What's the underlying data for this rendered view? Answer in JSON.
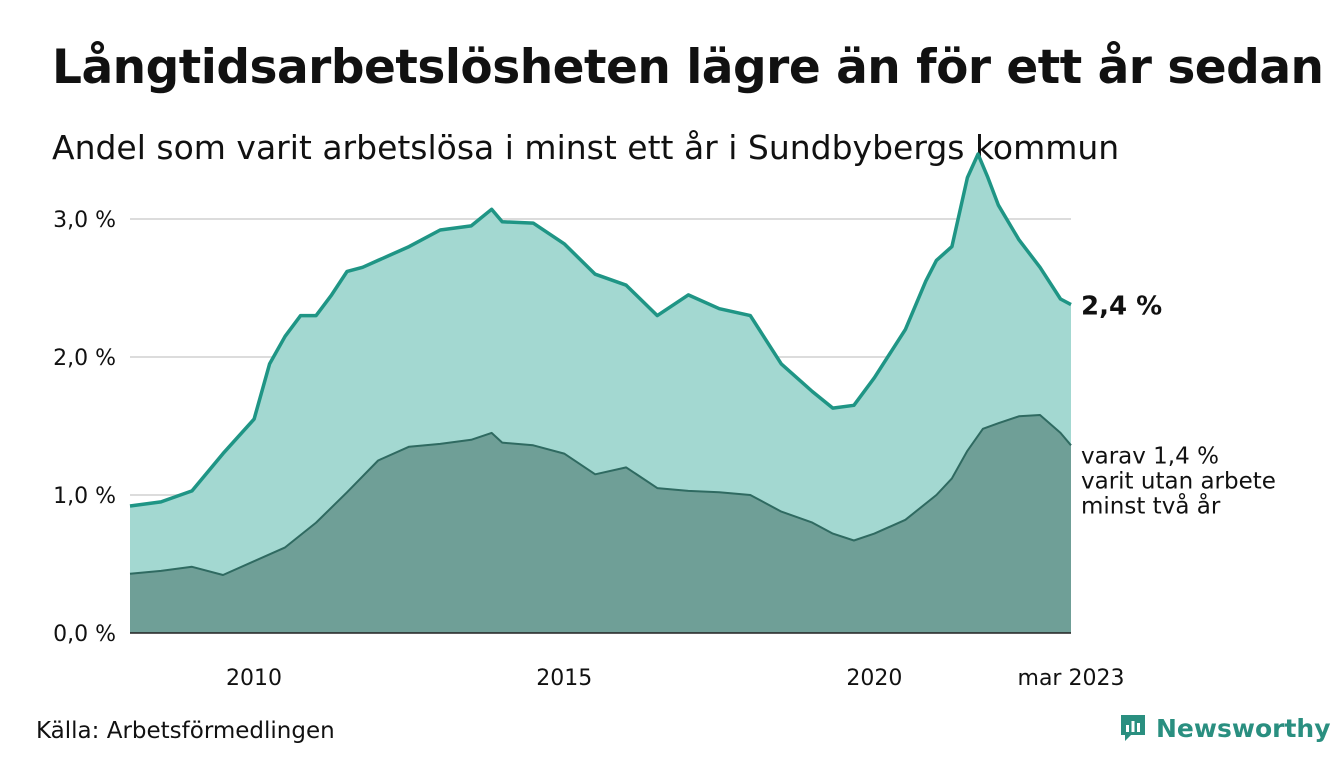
{
  "title": "Långtidsarbetslösheten lägre än för ett år sedan",
  "subtitle": "Andel som varit arbetslösa i minst ett år i Sundbybergs kommun",
  "source": "Källa: Arbetsförmedlingen",
  "brand": "Newsworthy",
  "colors": {
    "upper_fill": "#a3d8d1",
    "upper_line": "#1f9585",
    "lower_fill": "#6f9f97",
    "lower_line": "#2f6a61",
    "brand": "#2a8f80"
  },
  "chart_data": {
    "type": "area",
    "xlim": [
      2008.0,
      2023.17
    ],
    "ylim": [
      0,
      3.5
    ],
    "y_ticks": [
      0,
      1,
      2,
      3
    ],
    "y_tick_labels": [
      "0,0 %",
      "1,0 %",
      "2,0 %",
      "3,0 %"
    ],
    "x_ticks": [
      2010,
      2015,
      2020,
      2023.17
    ],
    "x_tick_labels": [
      "2010",
      "2015",
      "2020",
      "mar 2023"
    ],
    "grid": true,
    "series": [
      {
        "id": "minst_ett_ar",
        "x": [
          2008.0,
          2008.5,
          2009.0,
          2009.5,
          2010.0,
          2010.25,
          2010.5,
          2010.75,
          2011.0,
          2011.25,
          2011.5,
          2011.75,
          2012.0,
          2012.5,
          2013.0,
          2013.5,
          2013.83,
          2014.0,
          2014.5,
          2015.0,
          2015.5,
          2016.0,
          2016.5,
          2017.0,
          2017.5,
          2018.0,
          2018.5,
          2019.0,
          2019.33,
          2019.67,
          2020.0,
          2020.5,
          2020.83,
          2021.0,
          2021.25,
          2021.5,
          2021.67,
          2021.83,
          2022.0,
          2022.33,
          2022.67,
          2023.0,
          2023.17
        ],
        "y": [
          0.92,
          0.95,
          1.03,
          1.3,
          1.55,
          1.95,
          2.15,
          2.3,
          2.3,
          2.45,
          2.62,
          2.65,
          2.7,
          2.8,
          2.92,
          2.95,
          3.07,
          2.98,
          2.97,
          2.82,
          2.6,
          2.52,
          2.3,
          2.45,
          2.35,
          2.3,
          1.95,
          1.75,
          1.63,
          1.65,
          1.85,
          2.2,
          2.55,
          2.7,
          2.8,
          3.3,
          3.47,
          3.3,
          3.1,
          2.85,
          2.65,
          2.42,
          2.38
        ],
        "end_label": "2,4 %"
      },
      {
        "id": "minst_tva_ar",
        "x": [
          2008.0,
          2008.5,
          2009.0,
          2009.5,
          2010.0,
          2010.5,
          2011.0,
          2011.5,
          2012.0,
          2012.5,
          2013.0,
          2013.5,
          2013.83,
          2014.0,
          2014.5,
          2015.0,
          2015.5,
          2016.0,
          2016.5,
          2017.0,
          2017.5,
          2018.0,
          2018.5,
          2019.0,
          2019.33,
          2019.67,
          2020.0,
          2020.5,
          2021.0,
          2021.25,
          2021.5,
          2021.75,
          2022.0,
          2022.33,
          2022.67,
          2023.0,
          2023.17
        ],
        "y": [
          0.43,
          0.45,
          0.48,
          0.42,
          0.52,
          0.62,
          0.8,
          1.02,
          1.25,
          1.35,
          1.37,
          1.4,
          1.45,
          1.38,
          1.36,
          1.3,
          1.15,
          1.2,
          1.05,
          1.03,
          1.02,
          1.0,
          0.88,
          0.8,
          0.72,
          0.67,
          0.72,
          0.82,
          1.0,
          1.12,
          1.32,
          1.48,
          1.52,
          1.57,
          1.58,
          1.45,
          1.36
        ],
        "end_label_lines": [
          "varav 1,4 %",
          "varit utan arbete",
          "minst två år"
        ]
      }
    ]
  }
}
